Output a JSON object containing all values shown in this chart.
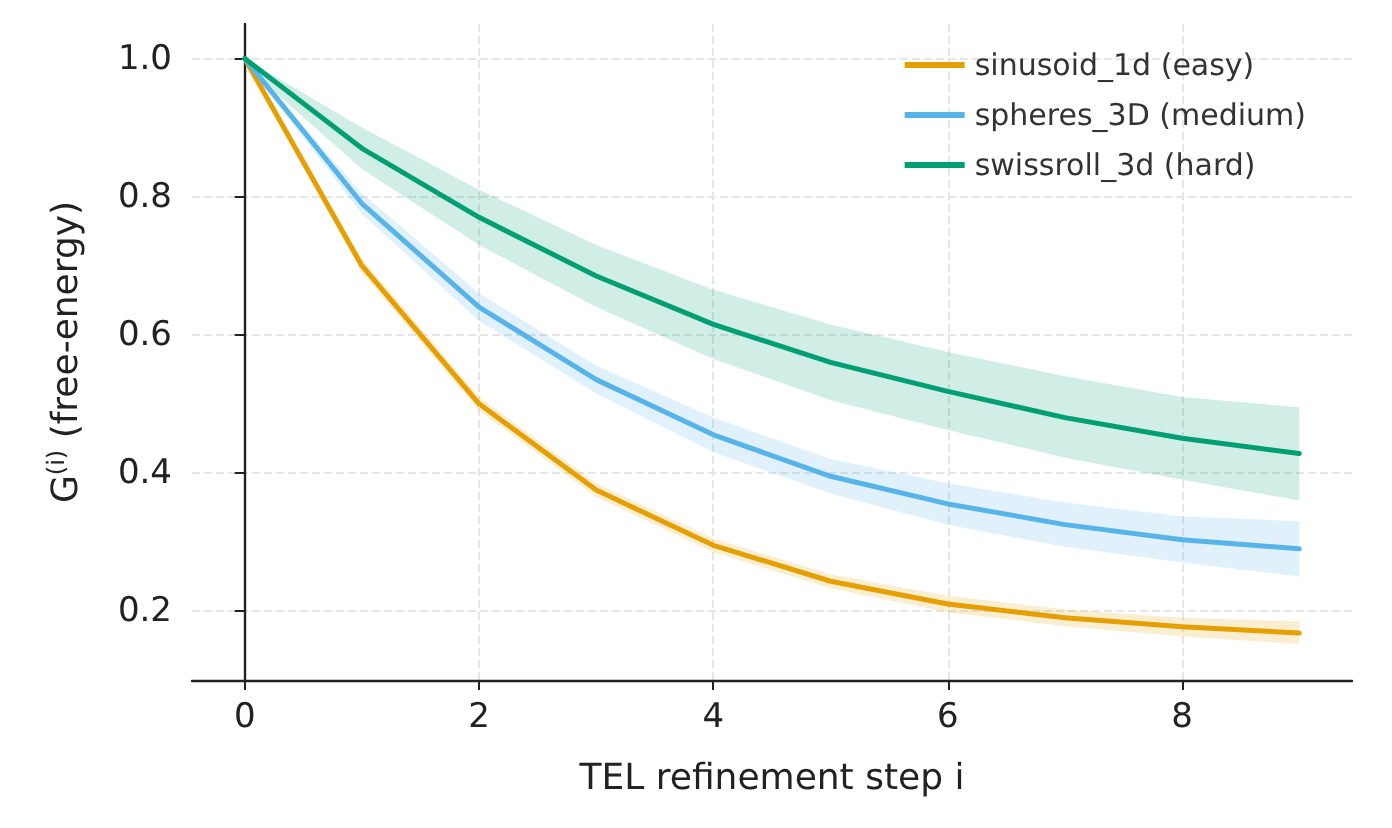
{
  "chart_data": {
    "type": "line",
    "xlabel": "TEL refinement step i",
    "ylabel": "G$^{(i)}$ (free-energy)",
    "x": [
      0,
      1,
      2,
      3,
      4,
      5,
      6,
      7,
      8,
      9
    ],
    "series": [
      {
        "name": "sinusoid_1d (easy)",
        "color": "#e69f00",
        "values": [
          1.0,
          0.7,
          0.5,
          0.375,
          0.295,
          0.243,
          0.21,
          0.19,
          0.177,
          0.168
        ],
        "lower": [
          0.995,
          0.69,
          0.49,
          0.365,
          0.285,
          0.233,
          0.198,
          0.178,
          0.163,
          0.152
        ],
        "upper": [
          1.0,
          0.71,
          0.51,
          0.385,
          0.305,
          0.253,
          0.222,
          0.202,
          0.19,
          0.185
        ]
      },
      {
        "name": "spheres_3D (medium)",
        "color": "#56b4e9",
        "values": [
          1.0,
          0.79,
          0.64,
          0.535,
          0.455,
          0.395,
          0.355,
          0.325,
          0.303,
          0.29
        ],
        "lower": [
          0.995,
          0.775,
          0.62,
          0.515,
          0.43,
          0.37,
          0.325,
          0.293,
          0.27,
          0.25
        ],
        "upper": [
          1.0,
          0.805,
          0.66,
          0.555,
          0.48,
          0.42,
          0.385,
          0.357,
          0.337,
          0.33
        ]
      },
      {
        "name": "swissroll_3d (hard)",
        "color": "#009e73",
        "values": [
          1.0,
          0.87,
          0.77,
          0.685,
          0.615,
          0.56,
          0.518,
          0.48,
          0.45,
          0.428
        ],
        "lower": [
          0.99,
          0.84,
          0.73,
          0.64,
          0.565,
          0.505,
          0.462,
          0.422,
          0.39,
          0.36
        ],
        "upper": [
          1.0,
          0.9,
          0.81,
          0.73,
          0.665,
          0.615,
          0.575,
          0.54,
          0.51,
          0.495
        ]
      }
    ],
    "xlim": [
      -0.45,
      9.45
    ],
    "ylim": [
      0.1,
      1.05
    ],
    "xticks": [
      0,
      2,
      4,
      6,
      8
    ],
    "yticks": [
      0.2,
      0.4,
      0.6,
      0.8,
      {
        "value": 1,
        "label": "1.0"
      }
    ],
    "grid": true,
    "legend": "top right",
    "marker": "none",
    "line_style": "solid"
  }
}
